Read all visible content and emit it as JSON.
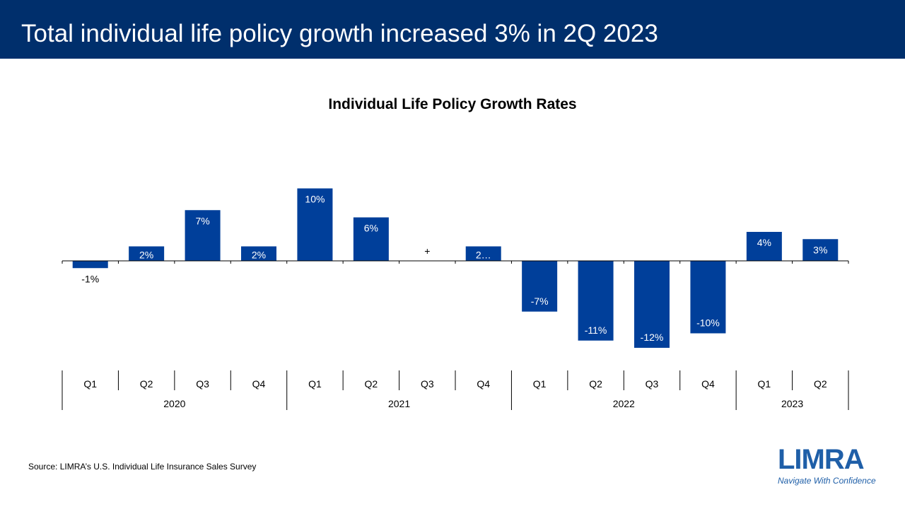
{
  "header": {
    "title": "Total individual life policy growth increased 3% in 2Q 2023"
  },
  "source": "Source: LIMRA’s U.S. Individual Life Insurance Sales Survey",
  "logo": {
    "name": "LIMRA",
    "tagline": "Navigate With Confidence"
  },
  "colors": {
    "header_bg": "#002f6c",
    "bar": "#003f9a",
    "brand": "#1f5fa8"
  },
  "chart_data": {
    "type": "bar",
    "title": "Individual Life Policy Growth Rates",
    "categories": [
      "Q1",
      "Q2",
      "Q3",
      "Q4",
      "Q1",
      "Q2",
      "Q3",
      "Q4",
      "Q1",
      "Q2",
      "Q3",
      "Q4",
      "Q1",
      "Q2"
    ],
    "groups": [
      {
        "label": "2020",
        "count": 4
      },
      {
        "label": "2021",
        "count": 4
      },
      {
        "label": "2022",
        "count": 4
      },
      {
        "label": "2023",
        "count": 2
      }
    ],
    "values": [
      -1,
      2,
      7,
      2,
      10,
      6,
      0,
      2,
      -7,
      -11,
      -12,
      -10,
      4,
      3
    ],
    "data_labels": [
      "-1%",
      "2%",
      "7%",
      "2%",
      "10%",
      "6%",
      "+",
      "2…",
      "-7%",
      "-11%",
      "-12%",
      "-10%",
      "4%",
      "3%"
    ],
    "xlabel": "",
    "ylabel": "",
    "grid": false
  }
}
